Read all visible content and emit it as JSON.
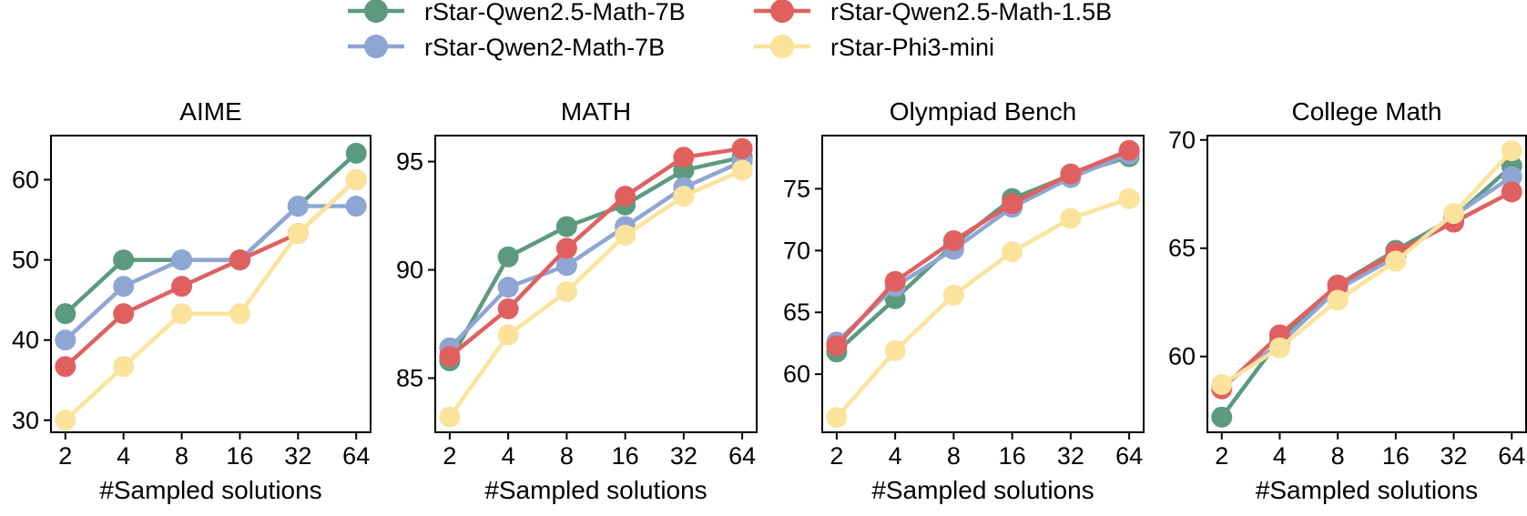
{
  "legend": {
    "placement": "top-center",
    "columns": 2,
    "entries": [
      {
        "name": "rStar-Qwen2.5-Math-7B",
        "color": "#5b9a7e"
      },
      {
        "name": "rStar-Qwen2.5-Math-1.5B",
        "color": "#e06060"
      },
      {
        "name": "rStar-Qwen2-Math-7B",
        "color": "#8fa6d4"
      },
      {
        "name": "rStar-Phi3-mini",
        "color": "#fbe39c"
      }
    ]
  },
  "chart_data": [
    {
      "type": "line",
      "title": "AIME",
      "xlabel": "#Sampled solutions",
      "ylabel": "",
      "categories": [
        "2",
        "4",
        "8",
        "16",
        "32",
        "64"
      ],
      "ylim": [
        28.5,
        65.5
      ],
      "yticks": [
        30,
        40,
        50,
        60
      ],
      "grid": false,
      "series": [
        {
          "name": "rStar-Qwen2.5-Math-7B",
          "color": "#5b9a7e",
          "values": [
            43.3,
            50.0,
            50.0,
            50.0,
            56.7,
            63.3
          ]
        },
        {
          "name": "rStar-Qwen2-Math-7B",
          "color": "#8fa6d4",
          "values": [
            40.0,
            46.7,
            50.0,
            50.0,
            56.7,
            56.7
          ]
        },
        {
          "name": "rStar-Qwen2.5-Math-1.5B",
          "color": "#e06060",
          "values": [
            36.7,
            43.3,
            46.7,
            50.0,
            53.3,
            60.0
          ]
        },
        {
          "name": "rStar-Phi3-mini",
          "color": "#fbe39c",
          "values": [
            30.0,
            36.7,
            43.3,
            43.3,
            53.3,
            60.0
          ]
        }
      ]
    },
    {
      "type": "line",
      "title": "MATH",
      "xlabel": "#Sampled solutions",
      "ylabel": "",
      "categories": [
        "2",
        "4",
        "8",
        "16",
        "32",
        "64"
      ],
      "ylim": [
        82.5,
        96.2
      ],
      "yticks": [
        85,
        90,
        95
      ],
      "grid": false,
      "series": [
        {
          "name": "rStar-Qwen2.5-Math-7B",
          "color": "#5b9a7e",
          "values": [
            85.8,
            90.6,
            92.0,
            93.0,
            94.6,
            95.2
          ]
        },
        {
          "name": "rStar-Qwen2-Math-7B",
          "color": "#8fa6d4",
          "values": [
            86.4,
            89.2,
            90.2,
            92.0,
            93.8,
            95.0
          ]
        },
        {
          "name": "rStar-Qwen2.5-Math-1.5B",
          "color": "#e06060",
          "values": [
            86.0,
            88.2,
            91.0,
            93.4,
            95.2,
            95.6
          ]
        },
        {
          "name": "rStar-Phi3-mini",
          "color": "#fbe39c",
          "values": [
            83.2,
            87.0,
            89.0,
            91.6,
            93.4,
            94.6
          ]
        }
      ]
    },
    {
      "type": "line",
      "title": "Olympiad Bench",
      "xlabel": "#Sampled solutions",
      "ylabel": "",
      "categories": [
        "2",
        "4",
        "8",
        "16",
        "32",
        "64"
      ],
      "ylim": [
        55.3,
        79.3
      ],
      "yticks": [
        60,
        65,
        70,
        75
      ],
      "grid": false,
      "series": [
        {
          "name": "rStar-Qwen2.5-Math-7B",
          "color": "#5b9a7e",
          "values": [
            61.8,
            66.1,
            70.5,
            74.2,
            76.1,
            77.6
          ]
        },
        {
          "name": "rStar-Qwen2-Math-7B",
          "color": "#8fa6d4",
          "values": [
            62.6,
            67.1,
            70.1,
            73.5,
            75.9,
            77.8
          ]
        },
        {
          "name": "rStar-Qwen2.5-Math-1.5B",
          "color": "#e06060",
          "values": [
            62.3,
            67.5,
            70.8,
            73.8,
            76.2,
            78.1
          ]
        },
        {
          "name": "rStar-Phi3-mini",
          "color": "#fbe39c",
          "values": [
            56.5,
            61.9,
            66.4,
            69.9,
            72.6,
            74.2
          ]
        }
      ]
    },
    {
      "type": "line",
      "title": "College Math",
      "xlabel": "#Sampled solutions",
      "ylabel": "",
      "categories": [
        "2",
        "4",
        "8",
        "16",
        "32",
        "64"
      ],
      "ylim": [
        56.5,
        70.2
      ],
      "yticks": [
        60,
        65,
        70
      ],
      "grid": false,
      "series": [
        {
          "name": "rStar-Qwen2.5-Math-7B",
          "color": "#5b9a7e",
          "values": [
            57.2,
            60.8,
            63.3,
            64.9,
            66.4,
            68.8
          ]
        },
        {
          "name": "rStar-Qwen2-Math-7B",
          "color": "#8fa6d4",
          "values": [
            58.6,
            60.6,
            63.1,
            64.6,
            66.5,
            68.3
          ]
        },
        {
          "name": "rStar-Qwen2.5-Math-1.5B",
          "color": "#e06060",
          "values": [
            58.5,
            61.0,
            63.3,
            64.8,
            66.2,
            67.6
          ]
        },
        {
          "name": "rStar-Phi3-mini",
          "color": "#fbe39c",
          "values": [
            58.7,
            60.4,
            62.6,
            64.4,
            66.6,
            69.5
          ]
        }
      ]
    }
  ]
}
